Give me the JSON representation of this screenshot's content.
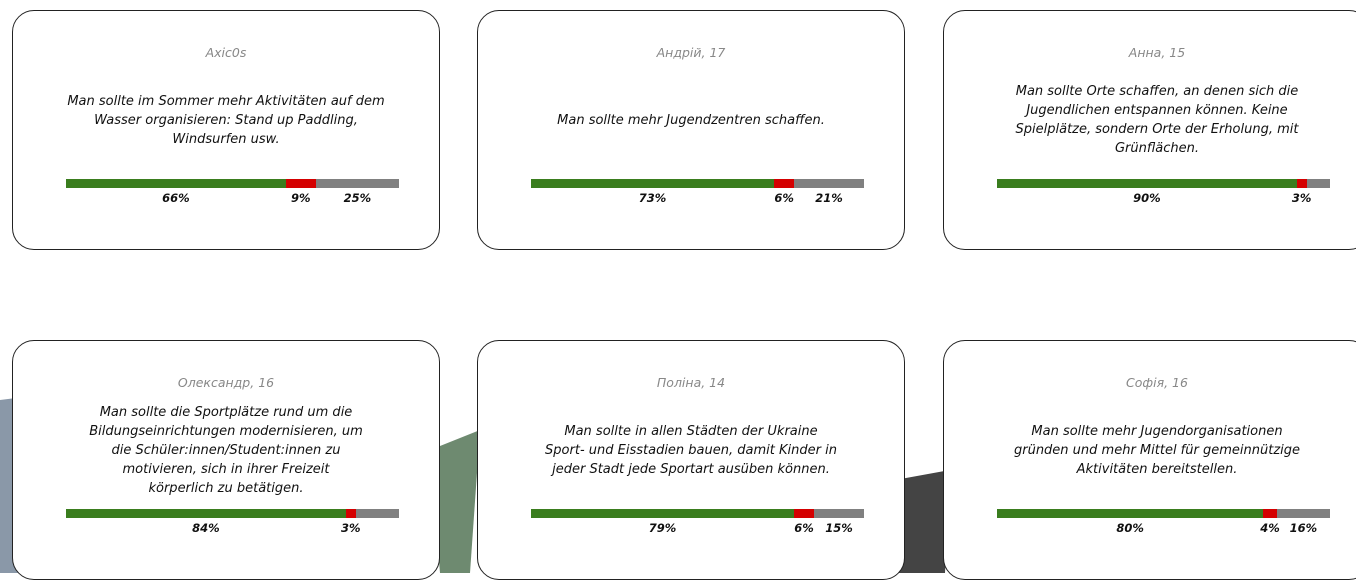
{
  "cards": [
    {
      "author": "Axic0s",
      "lines": [
        "Man sollte im Sommer mehr Aktivitäten auf dem",
        "Wasser organisieren: Stand up Paddling,",
        "Windsurfen usw."
      ],
      "values": [
        66,
        9,
        25
      ],
      "value_labels": [
        "66%",
        "9%",
        "25%"
      ]
    },
    {
      "author": "Андрій, 17",
      "lines": [
        "Man sollte mehr Jugendzentren schaffen."
      ],
      "values": [
        73,
        6,
        21
      ],
      "value_labels": [
        "73%",
        "6%",
        "21%"
      ]
    },
    {
      "author": "Анна, 15",
      "lines": [
        "Man sollte Orte schaffen, an denen sich die",
        "Jugendlichen entspannen können. Keine",
        "Spielplätze, sondern Orte der Erholung, mit",
        "Grünflächen."
      ],
      "values": [
        90,
        3,
        7
      ],
      "value_labels": [
        "90%",
        "3%",
        null
      ]
    },
    {
      "author": "Олександр, 16",
      "lines": [
        "Man sollte die Sportplätze rund um die",
        "Bildungseinrichtungen modernisieren, um",
        "die Schüler:innen/Student:innen zu",
        "motivieren, sich in ihrer Freizeit",
        "körperlich zu betätigen."
      ],
      "values": [
        84,
        3,
        13
      ],
      "value_labels": [
        "84%",
        "3%",
        null
      ]
    },
    {
      "author": "Поліна, 14",
      "lines": [
        "Man sollte in allen Städten der Ukraine",
        "Sport- und Eisstadien bauen, damit Kinder in",
        "jeder Stadt jede Sportart ausüben können."
      ],
      "values": [
        79,
        6,
        15
      ],
      "value_labels": [
        "79%",
        "6%",
        "15%"
      ]
    },
    {
      "author": "Софія, 16",
      "lines": [
        "Man sollte mehr Jugendorganisationen",
        "gründen und mehr Mittel für gemeinnützige",
        "Aktivitäten bereitstellen."
      ],
      "values": [
        80,
        4,
        16
      ],
      "value_labels": [
        "80%",
        "4%",
        "16%"
      ]
    }
  ],
  "colors": [
    "#3a7d1e",
    "#d40000",
    "#808080"
  ]
}
